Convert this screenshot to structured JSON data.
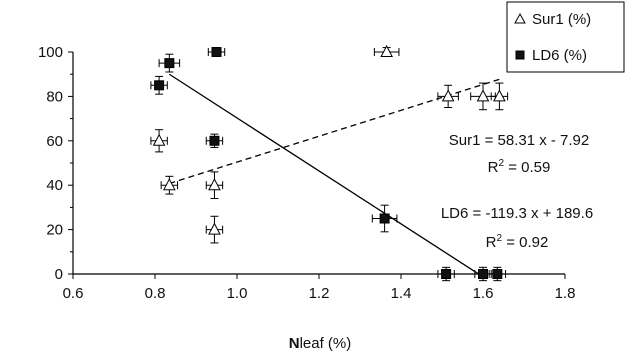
{
  "chart_data": {
    "type": "scatter",
    "xlabel_bold": "N",
    "xlabel_rest": "leaf (%)",
    "xlim": [
      0.6,
      1.8
    ],
    "ylim": [
      0,
      100
    ],
    "xticks": [
      "0.6",
      "0.8",
      "1.0",
      "1.2",
      "1.4",
      "1.6",
      "1.8"
    ],
    "yticks": [
      "0",
      "20",
      "40",
      "60",
      "80",
      "100"
    ],
    "grid": false,
    "legend_position": "top-right",
    "series": [
      {
        "name": "Sur1 (%)",
        "marker": "open-triangle",
        "color": "#000000",
        "points": [
          {
            "x": 0.81,
            "y": 60,
            "xerr": 0.02,
            "yerr": 5
          },
          {
            "x": 0.835,
            "y": 40,
            "xerr": 0.02,
            "yerr": 4
          },
          {
            "x": 0.945,
            "y": 40,
            "xerr": 0.02,
            "yerr": 6
          },
          {
            "x": 0.945,
            "y": 20,
            "xerr": 0.02,
            "yerr": 6
          },
          {
            "x": 1.365,
            "y": 100,
            "xerr": 0.03,
            "yerr": 2
          },
          {
            "x": 1.515,
            "y": 80,
            "xerr": 0.025,
            "yerr": 5
          },
          {
            "x": 1.6,
            "y": 80,
            "xerr": 0.03,
            "yerr": 6
          },
          {
            "x": 1.64,
            "y": 80,
            "xerr": 0.02,
            "yerr": 6
          }
        ],
        "trendline": {
          "style": "dashed",
          "x_range": [
            0.835,
            1.64
          ],
          "slope": 58.31,
          "intercept": -7.92
        },
        "equation": "Sur1 = 58.31 x - 7.92",
        "r2_prefix": "R",
        "r2_sup": "2",
        "r2_value": " = 0.59"
      },
      {
        "name": "LD6 (%)",
        "marker": "filled-square",
        "color": "#000000",
        "points": [
          {
            "x": 0.81,
            "y": 85,
            "xerr": 0.02,
            "yerr": 4
          },
          {
            "x": 0.835,
            "y": 95,
            "xerr": 0.025,
            "yerr": 4
          },
          {
            "x": 0.95,
            "y": 100,
            "xerr": 0.02,
            "yerr": 1.5
          },
          {
            "x": 0.945,
            "y": 60,
            "xerr": 0.02,
            "yerr": 3
          },
          {
            "x": 1.36,
            "y": 25,
            "xerr": 0.03,
            "yerr": 6
          },
          {
            "x": 1.51,
            "y": 0,
            "xerr": 0.02,
            "yerr": 3
          },
          {
            "x": 1.6,
            "y": 0,
            "xerr": 0.02,
            "yerr": 3
          },
          {
            "x": 1.635,
            "y": 0,
            "xerr": 0.02,
            "yerr": 3
          }
        ],
        "trendline": {
          "style": "solid",
          "x_range": [
            0.835,
            1.59
          ],
          "slope": -119.3,
          "intercept": 189.6
        },
        "equation": "LD6 = -119.3 x + 189.6",
        "r2_prefix": "R",
        "r2_sup": "2",
        "r2_value": " = 0.92"
      }
    ]
  }
}
